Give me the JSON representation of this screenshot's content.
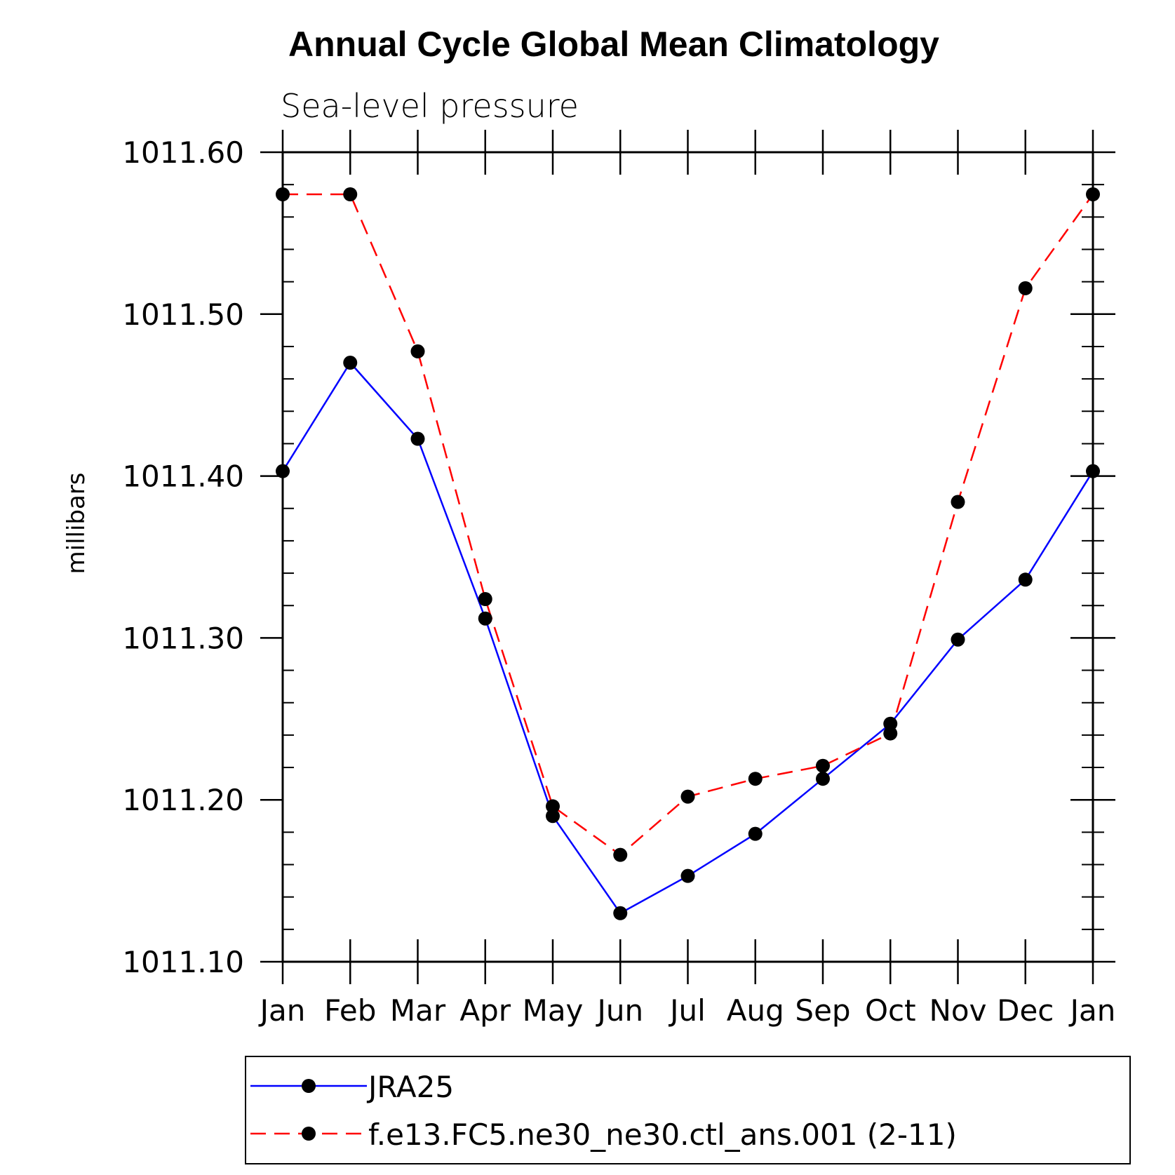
{
  "chart_data": {
    "type": "line",
    "title": "Annual Cycle Global Mean Climatology",
    "subtitle": "Sea-level pressure",
    "xlabel": "",
    "ylabel": "millibars",
    "categories": [
      "Jan",
      "Feb",
      "Mar",
      "Apr",
      "May",
      "Jun",
      "Jul",
      "Aug",
      "Sep",
      "Oct",
      "Nov",
      "Dec",
      "Jan"
    ],
    "ylim": [
      1011.1,
      1011.6
    ],
    "yticks": [
      "1011.10",
      "1011.20",
      "1011.30",
      "1011.40",
      "1011.50",
      "1011.60"
    ],
    "series": [
      {
        "name": "JRA25",
        "color": "#0000ff",
        "style": "solid",
        "values": [
          1011.403,
          1011.47,
          1011.423,
          1011.312,
          1011.19,
          1011.13,
          1011.153,
          1011.179,
          1011.213,
          1011.247,
          1011.299,
          1011.336,
          1011.403
        ]
      },
      {
        "name": "f.e13.FC5.ne30_ne30.ctl_ans.001 (2-11)",
        "color": "#ff0000",
        "style": "dashed",
        "values": [
          1011.574,
          1011.574,
          1011.477,
          1011.324,
          1011.196,
          1011.166,
          1011.202,
          1011.213,
          1011.221,
          1011.241,
          1011.384,
          1011.516,
          1011.574
        ]
      }
    ]
  }
}
